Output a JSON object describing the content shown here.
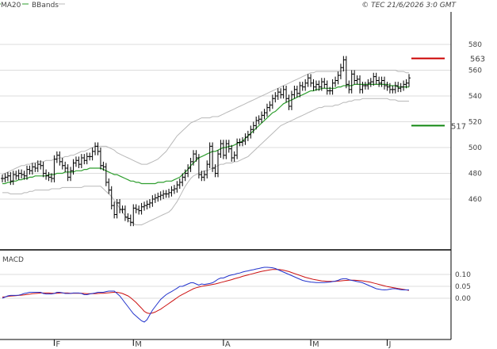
{
  "header": {
    "legend": [
      {
        "label": "MA20",
        "color": "#2e9e2e"
      },
      {
        "label": "BBands",
        "color": "#bbbbbb"
      }
    ],
    "copyright": "© TEC 21/6/2026 3:0 GMT"
  },
  "levels": {
    "resistance": {
      "label": "563",
      "value": 563,
      "color": "#cc0000"
    },
    "support": {
      "label": "517",
      "value": 517,
      "color": "#118811"
    }
  },
  "colors": {
    "grid": "#dddddd",
    "candle": "#000000",
    "ma": "#2e9e2e",
    "bbands": "#b8b8b8",
    "macd": "#2233cc",
    "signal": "#cc1111",
    "axis": "#000000"
  },
  "chart_data": [
    {
      "type": "candlestick",
      "title": "",
      "y_ticks": [
        "580",
        "560",
        "540",
        "520",
        "500",
        "480",
        "460"
      ],
      "y_tick_values": [
        580,
        560,
        540,
        520,
        500,
        480,
        460
      ],
      "ylim": [
        440,
        592
      ],
      "x_ticks": [
        "F",
        "M",
        "A",
        "M",
        "J"
      ],
      "x_tick_index": [
        19,
        48,
        81,
        113,
        141
      ],
      "grid": true,
      "close": [
        476,
        477,
        478,
        474,
        479,
        478,
        480,
        479,
        478,
        483,
        482,
        485,
        484,
        487,
        486,
        480,
        478,
        477,
        476,
        491,
        494,
        489,
        486,
        484,
        477,
        482,
        488,
        490,
        487,
        492,
        490,
        493,
        493,
        497,
        501,
        497,
        486,
        485,
        473,
        467,
        455,
        448,
        457,
        452,
        452,
        446,
        445,
        442,
        453,
        452,
        451,
        454,
        455,
        456,
        457,
        460,
        461,
        462,
        463,
        464,
        464,
        465,
        467,
        468,
        471,
        473,
        477,
        480,
        484,
        489,
        495,
        492,
        479,
        477,
        479,
        487,
        501,
        484,
        480,
        495,
        503,
        494,
        503,
        499,
        492,
        494,
        504,
        504,
        505,
        508,
        510,
        514,
        517,
        521,
        522,
        525,
        527,
        531,
        533,
        538,
        540,
        543,
        541,
        545,
        538,
        532,
        541,
        545,
        542,
        548,
        547,
        550,
        554,
        550,
        547,
        549,
        547,
        551,
        549,
        544,
        544,
        550,
        552,
        556,
        562,
        568,
        549,
        545,
        557,
        552,
        553,
        545,
        548,
        548,
        550,
        551,
        555,
        552,
        550,
        552,
        548,
        547,
        545,
        545,
        548,
        546,
        547,
        549,
        550,
        554
      ],
      "ma20": [
        472,
        472,
        473,
        473,
        474,
        474,
        475,
        475,
        476,
        476,
        477,
        477,
        478,
        478,
        478,
        478,
        478,
        479,
        479,
        479,
        480,
        480,
        480,
        481,
        481,
        481,
        481,
        482,
        482,
        482,
        483,
        483,
        484,
        484,
        484,
        484,
        484,
        483,
        482,
        481,
        480,
        479,
        479,
        478,
        477,
        476,
        475,
        474,
        474,
        473,
        473,
        472,
        472,
        472,
        472,
        472,
        472,
        473,
        473,
        473,
        474,
        474,
        474,
        475,
        476,
        477,
        479,
        481,
        483,
        486,
        488,
        490,
        492,
        493,
        494,
        495,
        496,
        497,
        497,
        498,
        499,
        500,
        500,
        501,
        501,
        502,
        503,
        504,
        505,
        507,
        509,
        511,
        513,
        515,
        517,
        519,
        521,
        523,
        525,
        527,
        528,
        530,
        532,
        534,
        535,
        536,
        537,
        538,
        539,
        540,
        541,
        542,
        543,
        544,
        544,
        545,
        545,
        546,
        546,
        546,
        546,
        546,
        546,
        547,
        547,
        548,
        548,
        548,
        548,
        549,
        549,
        549,
        549,
        549,
        549,
        549,
        549,
        549,
        549,
        549,
        549,
        549,
        548,
        548,
        548,
        547,
        547,
        547,
        547,
        547
      ],
      "bb_upper": [
        479,
        480,
        481,
        482,
        483,
        484,
        485,
        486,
        486,
        487,
        487,
        488,
        488,
        489,
        489,
        489,
        490,
        490,
        490,
        491,
        491,
        492,
        492,
        493,
        493,
        494,
        494,
        495,
        496,
        497,
        497,
        498,
        499,
        500,
        501,
        501,
        501,
        501,
        501,
        500,
        499,
        498,
        496,
        495,
        494,
        493,
        492,
        491,
        490,
        489,
        488,
        487,
        487,
        487,
        488,
        489,
        490,
        491,
        493,
        495,
        497,
        500,
        503,
        506,
        509,
        511,
        513,
        515,
        517,
        519,
        520,
        521,
        522,
        523,
        523,
        523,
        523,
        524,
        524,
        524,
        525,
        526,
        527,
        528,
        529,
        530,
        531,
        532,
        533,
        534,
        535,
        536,
        537,
        538,
        539,
        540,
        541,
        542,
        543,
        544,
        545,
        546,
        547,
        548,
        549,
        550,
        551,
        552,
        553,
        554,
        555,
        556,
        557,
        558,
        558,
        559,
        559,
        559,
        559,
        559,
        559,
        559,
        559,
        559,
        559,
        560,
        560,
        560,
        560,
        560,
        560,
        560,
        560,
        560,
        560,
        560,
        560,
        560,
        560,
        560,
        560,
        560,
        560,
        560,
        560,
        559,
        559,
        559,
        558,
        558
      ],
      "bb_lower": [
        465,
        465,
        465,
        464,
        464,
        464,
        464,
        464,
        465,
        465,
        466,
        466,
        467,
        467,
        467,
        467,
        467,
        467,
        468,
        468,
        468,
        468,
        469,
        469,
        469,
        469,
        469,
        469,
        469,
        469,
        470,
        470,
        470,
        470,
        470,
        470,
        470,
        468,
        466,
        464,
        462,
        459,
        456,
        453,
        450,
        447,
        444,
        442,
        441,
        440,
        440,
        440,
        441,
        442,
        443,
        444,
        445,
        446,
        447,
        448,
        449,
        450,
        452,
        455,
        458,
        462,
        466,
        470,
        473,
        476,
        478,
        479,
        480,
        481,
        482,
        482,
        483,
        484,
        485,
        486,
        487,
        487,
        488,
        488,
        488,
        489,
        489,
        490,
        491,
        492,
        493,
        495,
        497,
        499,
        501,
        503,
        505,
        507,
        509,
        511,
        513,
        515,
        517,
        518,
        519,
        520,
        521,
        522,
        523,
        524,
        525,
        526,
        527,
        528,
        529,
        530,
        531,
        531,
        532,
        532,
        532,
        532,
        533,
        533,
        534,
        535,
        535,
        536,
        536,
        537,
        537,
        537,
        538,
        538,
        538,
        538,
        538,
        538,
        538,
        538,
        538,
        538,
        537,
        537,
        537,
        536,
        536,
        536,
        536,
        536
      ]
    },
    {
      "type": "line",
      "title": "MACD",
      "y_ticks": [
        "0.10",
        "0.05",
        "0.00"
      ],
      "y_tick_values": [
        0.1,
        0.05,
        0.0
      ],
      "ylim": [
        -0.11,
        0.16
      ],
      "grid": true,
      "series": [
        {
          "name": "",
          "color": "#2233cc",
          "values": [
            0.0,
            0.005,
            0.01,
            0.012,
            0.012,
            0.012,
            0.013,
            0.016,
            0.02,
            0.022,
            0.025,
            0.025,
            0.025,
            0.025,
            0.025,
            0.02,
            0.018,
            0.018,
            0.018,
            0.02,
            0.025,
            0.025,
            0.023,
            0.02,
            0.02,
            0.02,
            0.022,
            0.022,
            0.022,
            0.02,
            0.015,
            0.015,
            0.018,
            0.02,
            0.022,
            0.025,
            0.025,
            0.025,
            0.028,
            0.03,
            0.03,
            0.03,
            0.02,
            0.01,
            -0.005,
            -0.02,
            -0.035,
            -0.05,
            -0.065,
            -0.075,
            -0.085,
            -0.095,
            -0.1,
            -0.09,
            -0.07,
            -0.05,
            -0.035,
            -0.02,
            -0.005,
            0.005,
            0.015,
            0.022,
            0.028,
            0.035,
            0.042,
            0.05,
            0.05,
            0.055,
            0.06,
            0.065,
            0.065,
            0.06,
            0.055,
            0.06,
            0.058,
            0.06,
            0.062,
            0.065,
            0.072,
            0.08,
            0.085,
            0.085,
            0.09,
            0.095,
            0.098,
            0.1,
            0.104,
            0.106,
            0.11,
            0.113,
            0.115,
            0.118,
            0.12,
            0.123,
            0.125,
            0.128,
            0.13,
            0.13,
            0.129,
            0.128,
            0.125,
            0.12,
            0.115,
            0.11,
            0.105,
            0.1,
            0.095,
            0.09,
            0.085,
            0.08,
            0.075,
            0.072,
            0.07,
            0.068,
            0.067,
            0.066,
            0.066,
            0.066,
            0.066,
            0.067,
            0.068,
            0.07,
            0.072,
            0.075,
            0.08,
            0.082,
            0.082,
            0.078,
            0.075,
            0.073,
            0.07,
            0.068,
            0.065,
            0.06,
            0.055,
            0.05,
            0.045,
            0.04,
            0.038,
            0.036,
            0.035,
            0.036,
            0.038,
            0.04,
            0.04,
            0.038,
            0.036,
            0.035,
            0.035,
            0.035
          ]
        },
        {
          "name": "",
          "color": "#cc1111",
          "values": [
            0.005,
            0.006,
            0.008,
            0.009,
            0.01,
            0.011,
            0.012,
            0.013,
            0.014,
            0.016,
            0.017,
            0.019,
            0.02,
            0.021,
            0.022,
            0.022,
            0.022,
            0.022,
            0.021,
            0.021,
            0.021,
            0.022,
            0.022,
            0.022,
            0.022,
            0.021,
            0.021,
            0.021,
            0.021,
            0.021,
            0.02,
            0.019,
            0.019,
            0.019,
            0.019,
            0.02,
            0.021,
            0.021,
            0.022,
            0.023,
            0.024,
            0.025,
            0.025,
            0.023,
            0.02,
            0.015,
            0.01,
            0.002,
            -0.008,
            -0.018,
            -0.03,
            -0.042,
            -0.055,
            -0.062,
            -0.064,
            -0.062,
            -0.058,
            -0.052,
            -0.046,
            -0.038,
            -0.03,
            -0.022,
            -0.014,
            -0.006,
            0.002,
            0.01,
            0.016,
            0.022,
            0.028,
            0.034,
            0.04,
            0.044,
            0.047,
            0.05,
            0.052,
            0.054,
            0.056,
            0.058,
            0.06,
            0.063,
            0.066,
            0.069,
            0.072,
            0.075,
            0.078,
            0.082,
            0.085,
            0.088,
            0.092,
            0.095,
            0.098,
            0.101,
            0.104,
            0.107,
            0.11,
            0.113,
            0.115,
            0.117,
            0.119,
            0.121,
            0.121,
            0.121,
            0.12,
            0.118,
            0.115,
            0.112,
            0.108,
            0.104,
            0.1,
            0.096,
            0.092,
            0.088,
            0.085,
            0.082,
            0.079,
            0.077,
            0.075,
            0.073,
            0.072,
            0.071,
            0.071,
            0.071,
            0.071,
            0.072,
            0.073,
            0.074,
            0.075,
            0.076,
            0.076,
            0.076,
            0.075,
            0.074,
            0.073,
            0.071,
            0.069,
            0.067,
            0.064,
            0.061,
            0.058,
            0.055,
            0.052,
            0.049,
            0.047,
            0.045,
            0.043,
            0.041,
            0.039,
            0.037,
            0.035,
            0.033
          ]
        }
      ]
    }
  ]
}
